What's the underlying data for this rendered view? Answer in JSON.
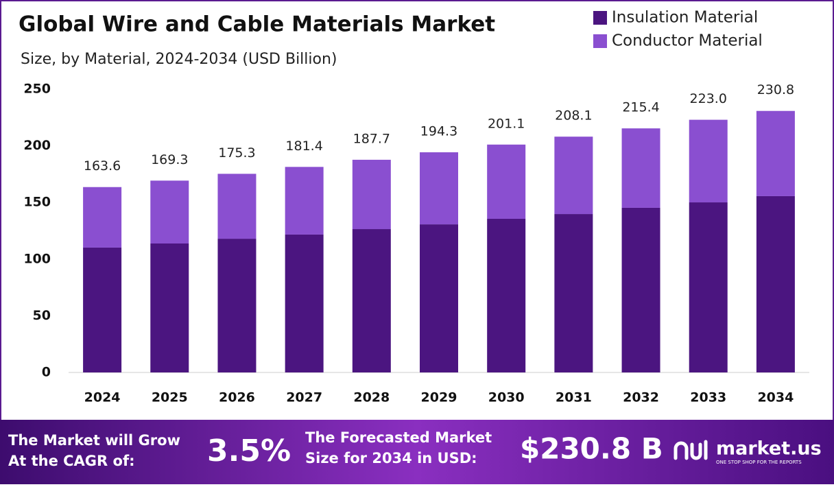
{
  "chart_data": {
    "type": "stacked_bar",
    "title": "Global Wire and Cable Materials Market",
    "subtitle": "Size, by Material, 2024-2034 (USD Billion)",
    "categories": [
      "2024",
      "2025",
      "2026",
      "2027",
      "2028",
      "2029",
      "2030",
      "2031",
      "2032",
      "2033",
      "2034"
    ],
    "series": [
      {
        "name": "Insulation Material",
        "color": "#4b1580",
        "values": [
          110.2,
          113.8,
          118.0,
          121.7,
          126.5,
          130.7,
          135.6,
          139.8,
          145.3,
          150.1,
          155.6
        ]
      },
      {
        "name": "Conductor Material",
        "color": "#8a4fd0",
        "values": [
          53.4,
          55.5,
          57.3,
          59.7,
          61.2,
          63.6,
          65.5,
          68.3,
          70.1,
          72.9,
          75.2
        ]
      }
    ],
    "totals": [
      163.6,
      169.3,
      175.3,
      181.4,
      187.7,
      194.3,
      201.1,
      208.1,
      215.4,
      {
        "value": 223.0,
        "label": "223.0"
      },
      230.8
    ],
    "ylim": [
      0,
      250
    ],
    "yticks": [
      0,
      50,
      100,
      150,
      200,
      250
    ],
    "grid": false,
    "legend": "top-right"
  },
  "footer": {
    "cagr_text_1": "The Market will Grow",
    "cagr_text_2": "At the CAGR of:",
    "cagr": "3.5%",
    "forecast_text_1": "The Forecasted Market",
    "forecast_text_2": "Size for 2034 in USD:",
    "forecast": "$230.8 B",
    "logo": "market.us",
    "logo_tagline": "ONE STOP SHOP FOR THE REPORTS"
  }
}
